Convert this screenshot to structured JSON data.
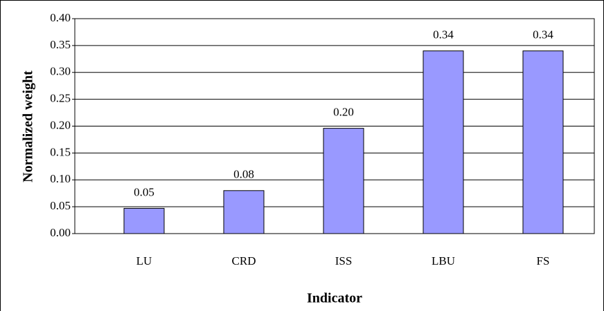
{
  "chart_data": {
    "type": "bar",
    "x_label": "Indicator",
    "y_label": "Normalized weight",
    "categories": [
      "LU",
      "CRD",
      "ISS",
      "LBU",
      "FS"
    ],
    "values": [
      0.047,
      0.08,
      0.196,
      0.34,
      0.34
    ],
    "value_labels": [
      "0.05",
      "0.08",
      "0.20",
      "0.34",
      "0.34"
    ],
    "color": "#9999ff",
    "ylim": [
      0,
      0.4
    ],
    "yticks": [
      {
        "value": 0,
        "label": "0.00"
      },
      {
        "value": 0.05,
        "label": "0.05"
      },
      {
        "value": 0.1,
        "label": "0.10"
      },
      {
        "value": 0.15,
        "label": "0.15"
      },
      {
        "value": 0.2,
        "label": "0.20"
      },
      {
        "value": 0.25,
        "label": "0.25"
      },
      {
        "value": 0.3,
        "label": "0.30"
      },
      {
        "value": 0.35,
        "label": "0.35"
      },
      {
        "value": 0.4,
        "label": "0.40"
      }
    ],
    "grid": true
  }
}
